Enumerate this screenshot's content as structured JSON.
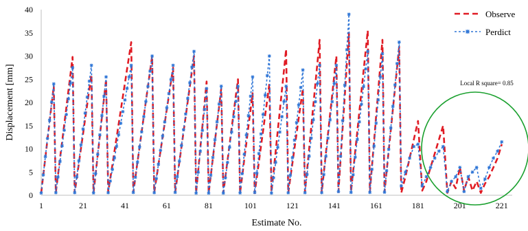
{
  "chart_data": {
    "type": "line",
    "xlabel": "Estimate No.",
    "ylabel": "Displacement [mm]",
    "xlim": [
      1,
      226
    ],
    "ylim": [
      0,
      40
    ],
    "x_ticks": [
      1,
      21,
      41,
      61,
      81,
      101,
      121,
      141,
      161,
      181,
      201,
      221
    ],
    "y_ticks": [
      0,
      5,
      10,
      15,
      20,
      25,
      30,
      35,
      40
    ],
    "legend": {
      "placement": "top-right"
    },
    "grid": false,
    "annotation": {
      "text": "Local R square= 0.85",
      "x_range": [
        192,
        226
      ],
      "y_center": 10.5
    },
    "series": [
      {
        "name": "Observe",
        "color": "#e01b24",
        "style": "dashed",
        "peaks": [
          {
            "start": 1,
            "peak": 7,
            "value": 23.5
          },
          {
            "start": 8,
            "peak": 16,
            "value": 29.8
          },
          {
            "start": 17,
            "peak": 25,
            "value": 26.0
          },
          {
            "start": 26,
            "peak": 32,
            "value": 25.0
          },
          {
            "start": 33,
            "peak": 44,
            "value": 33.0
          },
          {
            "start": 45,
            "peak": 54,
            "value": 30.0
          },
          {
            "start": 55,
            "peak": 64,
            "value": 27.5
          },
          {
            "start": 65,
            "peak": 74,
            "value": 30.0
          },
          {
            "start": 75,
            "peak": 80,
            "value": 24.5
          },
          {
            "start": 81,
            "peak": 87,
            "value": 23.0
          },
          {
            "start": 88,
            "peak": 95,
            "value": 25.0
          },
          {
            "start": 96,
            "peak": 102,
            "value": 22.0
          },
          {
            "start": 103,
            "peak": 110,
            "value": 24.0
          },
          {
            "start": 111,
            "peak": 118,
            "value": 31.5
          },
          {
            "start": 119,
            "peak": 126,
            "value": 23.0
          },
          {
            "start": 127,
            "peak": 134,
            "value": 33.5
          },
          {
            "start": 135,
            "peak": 142,
            "value": 30.0
          },
          {
            "start": 143,
            "peak": 148,
            "value": 35.0
          },
          {
            "start": 149,
            "peak": 157,
            "value": 35.5
          },
          {
            "start": 158,
            "peak": 164,
            "value": 33.5
          },
          {
            "start": 165,
            "peak": 172,
            "value": 32.0
          }
        ],
        "tail": {
          "x": [
            173,
            175,
            177,
            179,
            181,
            183,
            185,
            187,
            189,
            191,
            193,
            195,
            197,
            199,
            201,
            203,
            205,
            207,
            209,
            211,
            213,
            215,
            217,
            219,
            221
          ],
          "y": [
            0.5,
            4,
            8,
            12,
            16,
            1,
            3,
            6,
            9,
            12,
            15,
            0.5,
            3,
            1.5,
            6,
            1,
            4,
            1,
            3,
            0.5,
            2.5,
            4,
            6,
            8,
            11
          ]
        }
      },
      {
        "name": "Perdict",
        "color": "#2e75d6",
        "style": "dashed",
        "peaks": [
          {
            "start": 1,
            "peak": 7,
            "value": 24.0
          },
          {
            "start": 8,
            "peak": 16,
            "value": 27.5
          },
          {
            "start": 17,
            "peak": 25,
            "value": 28.0
          },
          {
            "start": 26,
            "peak": 32,
            "value": 25.5
          },
          {
            "start": 33,
            "peak": 44,
            "value": 28.0
          },
          {
            "start": 45,
            "peak": 54,
            "value": 30.0
          },
          {
            "start": 55,
            "peak": 64,
            "value": 28.0
          },
          {
            "start": 65,
            "peak": 74,
            "value": 31.0
          },
          {
            "start": 75,
            "peak": 80,
            "value": 23.0
          },
          {
            "start": 81,
            "peak": 87,
            "value": 23.5
          },
          {
            "start": 88,
            "peak": 95,
            "value": 23.5
          },
          {
            "start": 96,
            "peak": 102,
            "value": 25.5
          },
          {
            "start": 103,
            "peak": 110,
            "value": 30.0
          },
          {
            "start": 111,
            "peak": 118,
            "value": 23.5
          },
          {
            "start": 119,
            "peak": 126,
            "value": 27.0
          },
          {
            "start": 127,
            "peak": 134,
            "value": 28.0
          },
          {
            "start": 135,
            "peak": 142,
            "value": 28.0
          },
          {
            "start": 143,
            "peak": 148,
            "value": 39.0
          },
          {
            "start": 149,
            "peak": 157,
            "value": 31.0
          },
          {
            "start": 158,
            "peak": 164,
            "value": 30.5
          },
          {
            "start": 165,
            "peak": 172,
            "value": 33.0
          }
        ],
        "tail": {
          "x": [
            173,
            175,
            177,
            179,
            181,
            183,
            185,
            187,
            189,
            191,
            193,
            195,
            197,
            199,
            201,
            203,
            205,
            207,
            209,
            211,
            213,
            215,
            217,
            219,
            221
          ],
          "y": [
            2,
            5,
            8,
            10.5,
            11,
            2,
            4,
            6,
            8,
            9.5,
            10.5,
            0.8,
            3,
            4,
            6,
            0.8,
            4,
            5,
            6,
            1.5,
            3.5,
            6,
            8,
            9.5,
            11.5
          ]
        }
      }
    ]
  }
}
